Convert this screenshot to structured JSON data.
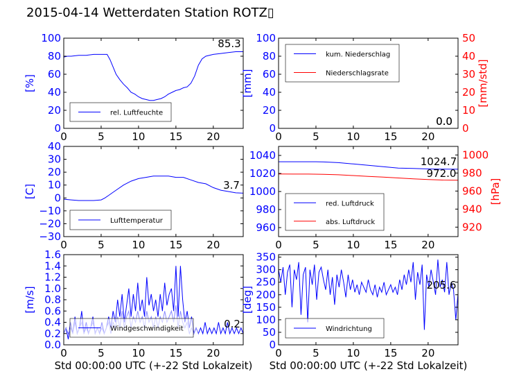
{
  "title": "2015-04-14 Wetterdaten Station ROTZ▯",
  "colors": {
    "primary": "#0000ff",
    "secondary": "#ff0000",
    "light": "#8888ff",
    "axis": "#000000",
    "legend_border": "#000000",
    "value_box": "#c8c8c8"
  },
  "chart_data": [
    {
      "id": "humidity",
      "type": "line",
      "title": "",
      "xlabel": "",
      "ylabel": "[%]",
      "xlim": [
        0,
        24
      ],
      "ylim": [
        0,
        100
      ],
      "xticks": [
        "0",
        "5",
        "10",
        "15",
        "20"
      ],
      "yticks": [
        "0",
        "20",
        "40",
        "60",
        "80",
        "100"
      ],
      "legend_position": "lower-left",
      "current_value": "85.3",
      "series": [
        {
          "name": "rel. Luftfeuchte",
          "color": "#0000ff",
          "axis": "left",
          "x": [
            0,
            0.5,
            1,
            2,
            3,
            4,
            5,
            5.8,
            6.2,
            6.6,
            7,
            7.5,
            8,
            8.5,
            9,
            9.5,
            10,
            10.5,
            11,
            11.5,
            12,
            12.5,
            13,
            13.5,
            14,
            14.5,
            15,
            15.5,
            16,
            16.5,
            17,
            17.5,
            18,
            18.5,
            19,
            20,
            21,
            22,
            23,
            24
          ],
          "y": [
            79,
            80,
            80,
            81,
            81,
            82,
            82,
            82,
            76,
            68,
            60,
            54,
            49,
            45,
            40,
            38,
            35,
            33,
            32,
            31,
            31,
            32,
            33,
            35,
            38,
            40,
            42,
            43,
            45,
            46,
            50,
            58,
            70,
            77,
            80,
            82,
            83,
            84,
            85,
            85
          ]
        }
      ]
    },
    {
      "id": "precip",
      "type": "line",
      "title": "",
      "xlabel": "",
      "ylabel": "[mm]",
      "ylabel_right": "[mm/std]",
      "xlim": [
        0,
        24
      ],
      "ylim": [
        0,
        100
      ],
      "ylim_right": [
        0,
        50
      ],
      "xticks": [
        "0",
        "5",
        "10",
        "15",
        "20"
      ],
      "yticks": [
        "0",
        "20",
        "40",
        "60",
        "80",
        "100"
      ],
      "yticks_right": [
        "0",
        "10",
        "20",
        "30",
        "40",
        "50"
      ],
      "legend_position": "upper-left",
      "current_values": [
        "0.0",
        "0.0"
      ],
      "series": [
        {
          "name": "kum. Niederschlag",
          "color": "#0000ff",
          "axis": "left",
          "x": [
            0,
            24
          ],
          "y": [
            0,
            0
          ]
        },
        {
          "name": "Niederschlagsrate",
          "color": "#ff0000",
          "axis": "right",
          "x": [
            0,
            24
          ],
          "y": [
            0,
            0
          ]
        }
      ]
    },
    {
      "id": "temperature",
      "type": "line",
      "title": "",
      "xlabel": "",
      "ylabel": "[C]",
      "xlim": [
        0,
        24
      ],
      "ylim": [
        -30,
        40
      ],
      "xticks": [
        "0",
        "5",
        "10",
        "15",
        "20"
      ],
      "yticks": [
        "−30",
        "−20",
        "−10",
        "0",
        "10",
        "20",
        "30",
        "40"
      ],
      "legend_position": "lower-left",
      "current_value": "3.7",
      "series": [
        {
          "name": "Lufttemperatur",
          "color": "#0000ff",
          "axis": "left",
          "x": [
            0,
            1,
            2,
            3,
            4,
            5,
            5.5,
            6,
            6.5,
            7,
            8,
            9,
            10,
            11,
            12,
            13,
            14,
            15,
            16,
            17,
            18,
            19,
            20,
            21,
            22,
            23,
            24
          ],
          "y": [
            -1,
            -1.5,
            -2,
            -2,
            -2,
            -1.5,
            0,
            2,
            4,
            6,
            10,
            13,
            15,
            16,
            17,
            17,
            17,
            16,
            16,
            14,
            12,
            11,
            8,
            6,
            5,
            4,
            3.7
          ]
        }
      ]
    },
    {
      "id": "pressure",
      "type": "line",
      "title": "",
      "xlabel": "",
      "ylabel": "[hPa]",
      "xlim": [
        0,
        24
      ],
      "ylim": [
        950,
        1050
      ],
      "ylim_right": [
        909.5,
        1009.5
      ],
      "xticks": [
        "0",
        "5",
        "10",
        "15",
        "20"
      ],
      "yticks": [
        "960",
        "980",
        "1000",
        "1020",
        "1040"
      ],
      "yticks_right": [
        "920",
        "940",
        "960",
        "980",
        "1000"
      ],
      "legend_position": "lower-left",
      "current_values": [
        "1024.7",
        "972.0"
      ],
      "series": [
        {
          "name": "red. Luftdruck",
          "color": "#0000ff",
          "axis": "left",
          "x": [
            0,
            2,
            4,
            5,
            6,
            8,
            10,
            12,
            14,
            16,
            18,
            20,
            22,
            24
          ],
          "y": [
            1033,
            1033,
            1033,
            1033,
            1032.8,
            1032,
            1030.5,
            1029,
            1027.5,
            1026,
            1025.5,
            1025,
            1024.8,
            1024.7
          ]
        },
        {
          "name": "abs. Luftdruck",
          "color": "#ff0000",
          "axis": "right",
          "x": [
            0,
            2,
            4,
            6,
            8,
            10,
            12,
            14,
            16,
            18,
            20,
            22,
            24
          ],
          "y": [
            979,
            978.8,
            978.8,
            978.5,
            978,
            977.2,
            976.3,
            975.5,
            974.5,
            973.5,
            972.8,
            972.2,
            972
          ]
        }
      ]
    },
    {
      "id": "wind",
      "type": "line",
      "title": "",
      "xlabel": "Std 00:00:00 UTC (+-22 Std Lokalzeit)",
      "ylabel": "[m/s]",
      "xlim": [
        0,
        24
      ],
      "ylim": [
        0,
        1.6
      ],
      "xticks": [
        "0",
        "5",
        "10",
        "15",
        "20"
      ],
      "yticks": [
        "0.0",
        "0.2",
        "0.4",
        "0.6",
        "0.8",
        "1.0",
        "1.2",
        "1.4",
        "1.6"
      ],
      "legend_position": "lower-center",
      "current_value": "0.2",
      "series": [
        {
          "name": "Windgeschwindigkeit",
          "color": "#0000ff",
          "axis": "left",
          "x": [
            0,
            0.3,
            0.6,
            0.9,
            1.2,
            1.5,
            1.8,
            2.1,
            2.4,
            2.7,
            3,
            3.3,
            3.6,
            3.9,
            4.2,
            4.5,
            4.8,
            5.1,
            5.4,
            5.7,
            6,
            6.3,
            6.6,
            6.9,
            7.2,
            7.5,
            7.8,
            8.1,
            8.4,
            8.7,
            9,
            9.3,
            9.6,
            9.9,
            10.2,
            10.5,
            10.8,
            11.1,
            11.4,
            11.7,
            12,
            12.3,
            12.6,
            12.9,
            13.2,
            13.5,
            13.8,
            14.1,
            14.4,
            14.7,
            15,
            15.3,
            15.6,
            15.9,
            16.2,
            16.5,
            16.8,
            17.1,
            17.4,
            17.7,
            18,
            18.3,
            18.6,
            18.9,
            19.2,
            19.5,
            19.8,
            20.1,
            20.4,
            20.7,
            21,
            21.3,
            21.6,
            21.9,
            22.2,
            22.5,
            22.8,
            23.1,
            23.4,
            23.7,
            24
          ],
          "y": [
            0.2,
            0.3,
            0.1,
            0.4,
            0.2,
            0.5,
            0.2,
            0.3,
            0.6,
            0.2,
            0.4,
            0.2,
            0.3,
            0.5,
            0.2,
            0.3,
            0.2,
            0.4,
            0.2,
            0.3,
            0.5,
            0.3,
            0.6,
            0.4,
            0.8,
            0.5,
            0.9,
            0.4,
            0.7,
            1.0,
            0.5,
            0.9,
            0.6,
            1.1,
            0.6,
            0.8,
            0.5,
            1.2,
            0.7,
            0.9,
            0.6,
            0.8,
            0.5,
            0.9,
            0.6,
            1.1,
            0.7,
            0.9,
            1.0,
            0.6,
            1.4,
            0.5,
            1.4,
            0.8,
            0.4,
            0.6,
            0.3,
            0.5,
            0.2,
            0.3,
            0.2,
            0.3,
            0.2,
            0.4,
            0.2,
            0.3,
            0.2,
            0.3,
            0.2,
            0.4,
            0.2,
            0.3,
            0.2,
            0.4,
            0.2,
            0.3,
            0.2,
            0.3,
            0.2,
            0.3,
            0.2
          ]
        },
        {
          "name": "",
          "color": "#8888ff",
          "axis": "left",
          "x": [
            0,
            0.3,
            0.6,
            0.9,
            1.2,
            1.5,
            1.8,
            2.1,
            2.4,
            2.7,
            3,
            3.3,
            3.6,
            3.9,
            4.2,
            4.5,
            4.8,
            5.1,
            5.4,
            5.7,
            6,
            6.3,
            6.6,
            6.9,
            7.2,
            7.5,
            7.8,
            8.1,
            8.4,
            8.7,
            9,
            9.3,
            9.6,
            9.9,
            10.2,
            10.5,
            10.8,
            11.1,
            11.4,
            11.7,
            12,
            12.3,
            12.6,
            12.9,
            13.2,
            13.5,
            13.8,
            14.1,
            14.4,
            14.7,
            15,
            15.3,
            15.6,
            15.9,
            16.2,
            16.5,
            16.8,
            17.1,
            17.4,
            17.7,
            18
          ],
          "y": [
            0.2,
            0.3,
            0.2,
            0.3,
            0.2,
            0.4,
            0.2,
            0.3,
            0.4,
            0.2,
            0.3,
            0.2,
            0.3,
            0.4,
            0.2,
            0.3,
            0.2,
            0.3,
            0.2,
            0.3,
            0.4,
            0.2,
            0.4,
            0.3,
            0.5,
            0.3,
            0.6,
            0.3,
            0.5,
            0.6,
            0.3,
            0.5,
            0.4,
            0.6,
            0.4,
            0.5,
            0.3,
            0.6,
            0.4,
            0.5,
            0.3,
            0.5,
            0.3,
            0.5,
            0.4,
            0.6,
            0.4,
            0.5,
            0.6,
            0.4,
            0.7,
            0.3,
            0.6,
            0.4,
            0.3,
            0.4,
            0.2,
            0.3,
            0.2,
            0.3,
            0.2
          ]
        }
      ]
    },
    {
      "id": "winddir",
      "type": "line",
      "title": "",
      "xlabel": "Std 00:00:00 UTC (+-22 Std Lokalzeit)",
      "ylabel": "[deg]",
      "xlim": [
        0,
        24
      ],
      "ylim": [
        0,
        360
      ],
      "xticks": [
        "0",
        "5",
        "10",
        "15",
        "20"
      ],
      "yticks": [
        "0",
        "50",
        "100",
        "150",
        "200",
        "250",
        "300",
        "350"
      ],
      "legend_position": "lower-left",
      "current_value": "205.6",
      "series": [
        {
          "name": "Windrichtung",
          "color": "#0000ff",
          "axis": "left",
          "x": [
            0,
            0.3,
            0.6,
            0.9,
            1.2,
            1.5,
            1.8,
            2.1,
            2.4,
            2.7,
            3,
            3.3,
            3.6,
            3.9,
            4.2,
            4.5,
            4.8,
            5.1,
            5.4,
            5.7,
            6,
            6.3,
            6.6,
            6.9,
            7.2,
            7.5,
            7.8,
            8.1,
            8.4,
            8.7,
            9,
            9.3,
            9.6,
            9.9,
            10.2,
            10.5,
            10.8,
            11.1,
            11.4,
            11.7,
            12,
            12.3,
            12.6,
            12.9,
            13.2,
            13.5,
            13.8,
            14.1,
            14.4,
            14.7,
            15,
            15.3,
            15.6,
            15.9,
            16.2,
            16.5,
            16.8,
            17.1,
            17.4,
            17.7,
            18,
            18.3,
            18.6,
            18.9,
            19.2,
            19.5,
            19.8,
            20.1,
            20.4,
            20.7,
            21,
            21.3,
            21.6,
            21.9,
            22.2,
            22.5,
            22.8,
            23.1,
            23.4,
            23.7,
            24
          ],
          "y": [
            300,
            250,
            310,
            200,
            290,
            320,
            150,
            300,
            260,
            330,
            120,
            280,
            310,
            90,
            300,
            240,
            320,
            180,
            290,
            310,
            260,
            220,
            300,
            200,
            270,
            160,
            280,
            230,
            300,
            250,
            190,
            280,
            220,
            260,
            210,
            240,
            200,
            250,
            230,
            210,
            260,
            220,
            200,
            240,
            190,
            230,
            210,
            250,
            200,
            220,
            240,
            210,
            230,
            200,
            260,
            220,
            280,
            240,
            300,
            250,
            330,
            180,
            290,
            240,
            320,
            60,
            280,
            230,
            300,
            250,
            200,
            340,
            230,
            260,
            210,
            330,
            200,
            250,
            220,
            100,
            205
          ]
        }
      ]
    }
  ]
}
